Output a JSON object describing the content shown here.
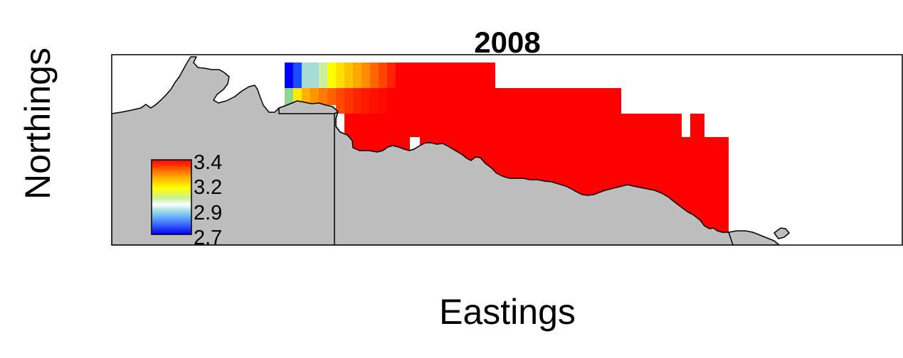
{
  "plot": {
    "title": "2008",
    "xlabel": "Eastings",
    "ylabel": "Northings"
  },
  "legend": {
    "ticks": [
      "3.4",
      "3.2",
      "2.9",
      "2.7"
    ],
    "color_scale": [
      "#0000ff",
      "#87cefa",
      "#ffffff",
      "#ffff00",
      "#ffa500",
      "#ff0000"
    ]
  },
  "colors": {
    "land": "#bebebe",
    "coastline": "#000000",
    "frame": "#000000",
    "high_value": "#ff0000"
  }
}
